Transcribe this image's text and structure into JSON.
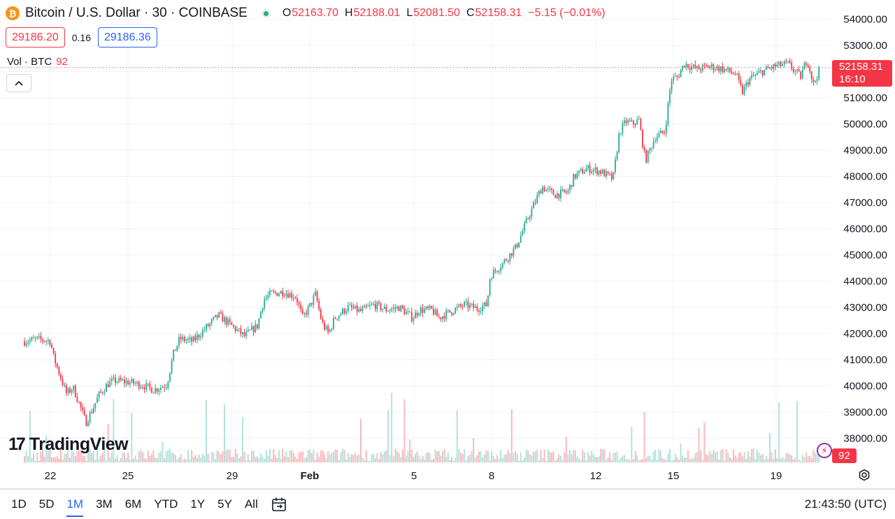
{
  "header": {
    "coin_glyph": "₿",
    "symbol_title": "Bitcoin / U.S. Dollar · 30 · COINBASE",
    "ohlc": {
      "o_label": "O",
      "o_value": "52163.70",
      "h_label": "H",
      "h_value": "52188.01",
      "l_label": "L",
      "l_value": "52081.50",
      "c_label": "C",
      "c_value": "52158.31",
      "change": "−5.15 (−0.01%)"
    }
  },
  "quote": {
    "bid": "29186.20",
    "spread": "0.16",
    "ask": "29186.36"
  },
  "volume_legend": {
    "label": "Vol · BTC",
    "value": "92"
  },
  "logo": {
    "mark": "17",
    "text": "TradingView"
  },
  "price_tag": {
    "price": "52158.31",
    "countdown": "16:10"
  },
  "volume_tag": "92",
  "bottom_bar": {
    "ranges": [
      "1D",
      "5D",
      "1M",
      "3M",
      "6M",
      "YTD",
      "1Y",
      "5Y",
      "All"
    ],
    "active_range": "1M",
    "clock": "21:43:50 (UTC)"
  },
  "colors": {
    "up": "#22ab94",
    "down": "#f23645",
    "accent": "#2962ff",
    "grid": "#f0f3fa"
  },
  "chart_data": {
    "type": "candlestick",
    "ylim": [
      37300,
      54300
    ],
    "y_ticks": [
      "54000.00",
      "53000.00",
      "52000.00",
      "51000.00",
      "50000.00",
      "49000.00",
      "48000.00",
      "47000.00",
      "46000.00",
      "45000.00",
      "44000.00",
      "43000.00",
      "42000.00",
      "41000.00",
      "40000.00",
      "39000.00",
      "38000.00"
    ],
    "x_ticks": [
      "22",
      "25",
      "29",
      "Feb",
      "5",
      "8",
      "12",
      "15",
      "19"
    ],
    "last_price": 52158.31,
    "price_path": [
      [
        "Jan 21 00:00",
        41700
      ],
      [
        "Jan 21 12:00",
        41780
      ],
      [
        "Jan 22 00:00",
        41720
      ],
      [
        "Jan 22 03:00",
        41100
      ],
      [
        "Jan 22 09:00",
        40400
      ],
      [
        "Jan 22 15:00",
        39700
      ],
      [
        "Jan 22 21:00",
        39950
      ],
      [
        "Jan 23 03:00",
        39300
      ],
      [
        "Jan 23 09:00",
        38600
      ],
      [
        "Jan 23 15:00",
        39100
      ],
      [
        "Jan 23 21:00",
        39650
      ],
      [
        "Jan 24 06:00",
        40100
      ],
      [
        "Jan 24 12:00",
        40200
      ],
      [
        "Jan 25 00:00",
        40150
      ],
      [
        "Jan 25 12:00",
        40050
      ],
      [
        "Jan 26 00:00",
        39850
      ],
      [
        "Jan 26 12:00",
        40050
      ],
      [
        "Jan 26 18:00",
        41200
      ],
      [
        "Jan 27 00:00",
        41800
      ],
      [
        "Jan 27 12:00",
        41700
      ],
      [
        "Jan 28 00:00",
        42200
      ],
      [
        "Jan 28 12:00",
        42700
      ],
      [
        "Jan 29 00:00",
        42300
      ],
      [
        "Jan 29 12:00",
        41900
      ],
      [
        "Jan 30 00:00",
        42300
      ],
      [
        "Jan 30 06:00",
        43300
      ],
      [
        "Jan 30 12:00",
        43500
      ],
      [
        "Jan 31 00:00",
        43600
      ],
      [
        "Jan 31 12:00",
        43400
      ],
      [
        "Jan 31 18:00",
        42600
      ],
      [
        "Feb 01 00:00",
        43000
      ],
      [
        "Feb 01 06:00",
        43500
      ],
      [
        "Feb 01 12:00",
        42400
      ],
      [
        "Feb 01 18:00",
        42000
      ],
      [
        "Feb 02 00:00",
        42600
      ],
      [
        "Feb 02 12:00",
        43000
      ],
      [
        "Feb 03 00:00",
        42850
      ],
      [
        "Feb 03 12:00",
        43100
      ],
      [
        "Feb 04 00:00",
        42900
      ],
      [
        "Feb 04 12:00",
        43000
      ],
      [
        "Feb 05 00:00",
        42600
      ],
      [
        "Feb 05 06:00",
        42900
      ],
      [
        "Feb 05 18:00",
        42900
      ],
      [
        "Feb 06 00:00",
        42600
      ],
      [
        "Feb 06 12:00",
        42850
      ],
      [
        "Feb 07 00:00",
        43100
      ],
      [
        "Feb 07 12:00",
        42950
      ],
      [
        "Feb 07 21:00",
        43100
      ],
      [
        "Feb 08 00:00",
        44200
      ],
      [
        "Feb 08 12:00",
        44700
      ],
      [
        "Feb 09 00:00",
        45300
      ],
      [
        "Feb 09 12:00",
        46500
      ],
      [
        "Feb 10 00:00",
        47600
      ],
      [
        "Feb 10 12:00",
        47300
      ],
      [
        "Feb 11 00:00",
        47400
      ],
      [
        "Feb 11 06:00",
        48000
      ],
      [
        "Feb 11 18:00",
        48300
      ],
      [
        "Feb 12 06:00",
        48200
      ],
      [
        "Feb 12 18:00",
        47900
      ],
      [
        "Feb 13 00:00",
        49700
      ],
      [
        "Feb 13 06:00",
        50100
      ],
      [
        "Feb 13 12:00",
        50000
      ],
      [
        "Feb 13 18:00",
        50150
      ],
      [
        "Feb 14 00:00",
        48600
      ],
      [
        "Feb 14 09:00",
        49500
      ],
      [
        "Feb 14 18:00",
        49700
      ],
      [
        "Feb 15 00:00",
        51700
      ],
      [
        "Feb 15 06:00",
        51800
      ],
      [
        "Feb 15 12:00",
        52300
      ],
      [
        "Feb 15 18:00",
        52200
      ],
      [
        "Feb 16 00:00",
        52100
      ],
      [
        "Feb 16 12:00",
        52200
      ],
      [
        "Feb 17 00:00",
        52100
      ],
      [
        "Feb 17 12:00",
        51900
      ],
      [
        "Feb 17 18:00",
        51200
      ],
      [
        "Feb 18 00:00",
        51700
      ],
      [
        "Feb 18 12:00",
        52000
      ],
      [
        "Feb 19 00:00",
        52200
      ],
      [
        "Feb 19 12:00",
        52300
      ],
      [
        "Feb 20 00:00",
        51800
      ],
      [
        "Feb 20 06:00",
        52500
      ],
      [
        "Feb 20 12:00",
        51500
      ],
      [
        "Feb 20 18:00",
        52158.31
      ]
    ]
  }
}
